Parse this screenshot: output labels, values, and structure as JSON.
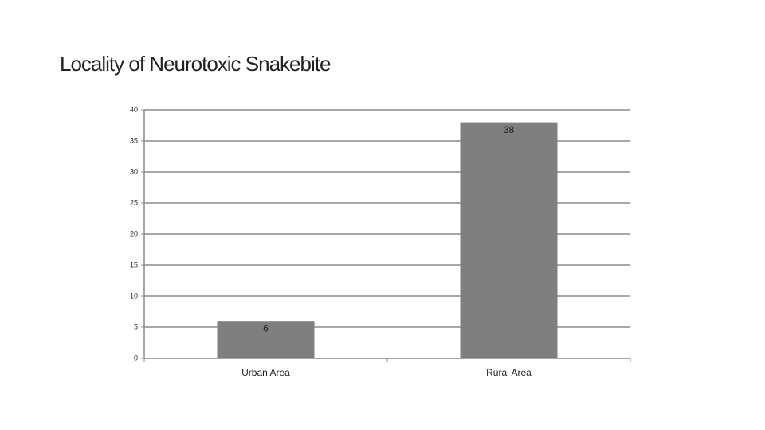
{
  "chart_data": {
    "type": "bar",
    "title": "Locality of Neurotoxic Snakebite",
    "categories": [
      "Urban Area",
      "Rural Area"
    ],
    "values": [
      6,
      38
    ],
    "color": "#7f7f7f",
    "ylim": [
      0,
      40
    ],
    "yticks": [
      0,
      5,
      10,
      15,
      20,
      25,
      30,
      35,
      40
    ],
    "grid": true
  }
}
